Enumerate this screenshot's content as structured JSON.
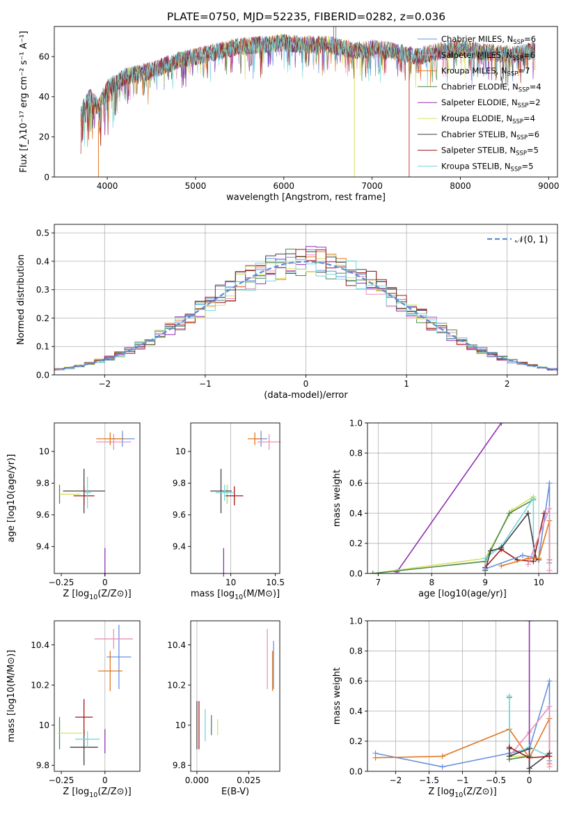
{
  "figure": {
    "title": "PLATE=0750, MJD=52235, FIBERID=0282, z=0.036"
  },
  "chart_data": [
    {
      "id": "spectrum",
      "type": "line",
      "xlabel": "wavelength [Angstrom, rest frame]",
      "ylabel": "Flux [f_λ10⁻¹⁷ erg cm⁻² s⁻¹ A⁻¹]",
      "xlim": [
        3400,
        9100
      ],
      "ylim": [
        0,
        75
      ],
      "xticks": [
        4000,
        5000,
        6000,
        7000,
        8000,
        9000
      ],
      "yticks": [
        0,
        20,
        40,
        60
      ],
      "grid": false,
      "legend_position": "top-right",
      "envelope_x": [
        3700,
        3800,
        3900,
        4000,
        4200,
        4500,
        4800,
        5000,
        5200,
        5500,
        5800,
        6000,
        6200,
        6500,
        6800,
        7000,
        7200,
        7500,
        7800,
        8000,
        8300,
        8600,
        8850
      ],
      "envelope_y": [
        32,
        40,
        35,
        44,
        50,
        53,
        58,
        60,
        62,
        65,
        66,
        67,
        66,
        66,
        63,
        64,
        63,
        60,
        63,
        64,
        62,
        61,
        63
      ],
      "series": [
        {
          "name": "Chabrier MILES, N_SSP=6",
          "label_main": "Chabrier MILES, N",
          "label_sub": "SSP",
          "label_tail": "=6",
          "color": "#6890e0"
        },
        {
          "name": "Salpeter MILES, N_SSP=6",
          "label_main": "Salpeter MILES, N",
          "label_sub": "SSP",
          "label_tail": "=6",
          "color": "#e890b8"
        },
        {
          "name": "Kroupa MILES, N_SSP=7",
          "label_main": "Kroupa MILES, N",
          "label_sub": "SSP",
          "label_tail": "=7",
          "color": "#e07820"
        },
        {
          "name": "Chabrier ELODIE, N_SSP=4",
          "label_main": "Chabrier ELODIE, N",
          "label_sub": "SSP",
          "label_tail": "=4",
          "color": "#4a8a4a"
        },
        {
          "name": "Salpeter ELODIE, N_SSP=2",
          "label_main": "Salpeter ELODIE, N",
          "label_sub": "SSP",
          "label_tail": "=2",
          "color": "#9030b0"
        },
        {
          "name": "Kroupa ELODIE, N_SSP=4",
          "label_main": "Kroupa ELODIE, N",
          "label_sub": "SSP",
          "label_tail": "=4",
          "color": "#d8e060"
        },
        {
          "name": "Chabrier STELIB, N_SSP=6",
          "label_main": "Chabrier STELIB, N",
          "label_sub": "SSP",
          "label_tail": "=6",
          "color": "#404040"
        },
        {
          "name": "Salpeter STELIB, N_SSP=5",
          "label_main": "Salpeter STELIB, N",
          "label_sub": "SSP",
          "label_tail": "=5",
          "color": "#a01818"
        },
        {
          "name": "Kroupa STELIB, N_SSP=5",
          "label_main": "Kroupa STELIB, N",
          "label_sub": "SSP",
          "label_tail": "=5",
          "color": "#70d8e0"
        }
      ]
    },
    {
      "id": "residuals",
      "type": "histogram",
      "xlabel": "(data-model)/error",
      "ylabel": "Normed distribution",
      "xlim": [
        -2.5,
        2.5
      ],
      "ylim": [
        0,
        0.53
      ],
      "xticks": [
        -2,
        -1,
        0,
        1,
        2
      ],
      "yticks": [
        0.0,
        0.1,
        0.2,
        0.3,
        0.4,
        0.5
      ],
      "grid": true,
      "legend_position": "top-right",
      "legend_label": "N(0,1)",
      "bins": 50
    },
    {
      "id": "age_vs_Z",
      "type": "errorbar",
      "xlabel_main": "Z [log",
      "xlabel_sub": "10",
      "xlabel_tail": "(Z/Z⊙)]",
      "ylabel": "age  [log10(age/yr)]",
      "xlim": [
        -0.29,
        0.2
      ],
      "ylim": [
        9.23,
        10.18
      ],
      "xticks": [
        -0.25,
        0.0
      ],
      "yticks": [
        9.4,
        9.6,
        9.8,
        10.0
      ],
      "points": [
        {
          "x": 0.1,
          "y": 10.08,
          "xerr": 0.07,
          "yerr": 0.05,
          "color": "#6890e0"
        },
        {
          "x": 0.05,
          "y": 10.06,
          "xerr": 0.1,
          "yerr": 0.05,
          "color": "#e890b8"
        },
        {
          "x": 0.03,
          "y": 10.08,
          "xerr": 0.08,
          "yerr": 0.04,
          "color": "#e07820"
        },
        {
          "x": -0.26,
          "y": 9.73,
          "xerr": 0.0,
          "yerr": 0.06,
          "color": "#4a8a4a"
        },
        {
          "x": 0.0,
          "y": 9.3,
          "xerr": 0.0,
          "yerr": 0.09,
          "color": "#9030b0"
        },
        {
          "x": -0.2,
          "y": 9.73,
          "xerr": 0.06,
          "yerr": 0.0,
          "color": "#d8e060"
        },
        {
          "x": -0.12,
          "y": 9.75,
          "xerr": 0.12,
          "yerr": 0.14,
          "color": "#404040"
        },
        {
          "x": -0.12,
          "y": 9.72,
          "xerr": 0.06,
          "yerr": 0.06,
          "color": "#a01818"
        },
        {
          "x": -0.1,
          "y": 9.74,
          "xerr": 0.02,
          "yerr": 0.1,
          "color": "#70d8e0"
        }
      ]
    },
    {
      "id": "age_vs_mass",
      "type": "errorbar",
      "xlabel_main": "mass [log",
      "xlabel_sub": "10",
      "xlabel_tail": "(M/M⊙)]",
      "xlim": [
        9.55,
        10.55
      ],
      "ylim": [
        9.23,
        10.18
      ],
      "xticks": [
        10.0,
        10.5
      ],
      "yticks": [
        9.4,
        9.6,
        9.8,
        10.0
      ],
      "points": [
        {
          "x": 10.34,
          "y": 10.08,
          "xerr": 0.07,
          "yerr": 0.05,
          "color": "#6890e0"
        },
        {
          "x": 10.43,
          "y": 10.06,
          "xerr": 0.13,
          "yerr": 0.05,
          "color": "#e890b8"
        },
        {
          "x": 10.27,
          "y": 10.08,
          "xerr": 0.08,
          "yerr": 0.04,
          "color": "#e07820"
        },
        {
          "x": 9.96,
          "y": 9.73,
          "xerr": 0.0,
          "yerr": 0.06,
          "color": "#4a8a4a"
        },
        {
          "x": 9.92,
          "y": 9.3,
          "xerr": 0.0,
          "yerr": 0.09,
          "color": "#9030b0"
        },
        {
          "x": 9.96,
          "y": 9.73,
          "xerr": 0.0,
          "yerr": 0.06,
          "color": "#d8e060"
        },
        {
          "x": 9.89,
          "y": 9.75,
          "xerr": 0.12,
          "yerr": 0.14,
          "color": "#404040"
        },
        {
          "x": 10.04,
          "y": 9.72,
          "xerr": 0.1,
          "yerr": 0.06,
          "color": "#a01818"
        },
        {
          "x": 9.93,
          "y": 9.74,
          "xerr": 0.1,
          "yerr": 0.05,
          "color": "#70d8e0"
        }
      ]
    },
    {
      "id": "mass_weight_vs_age",
      "type": "line",
      "xlabel": "age  [log10(age/yr)]",
      "ylabel": "mass weight",
      "xlim": [
        6.8,
        10.35
      ],
      "ylim": [
        0,
        1
      ],
      "xticks": [
        7,
        8,
        9,
        10
      ],
      "yticks": [
        0.0,
        0.2,
        0.4,
        0.6,
        0.8,
        1.0
      ],
      "grid": true,
      "series": [
        {
          "color": "#9030b0",
          "x": [
            7.35,
            9.3
          ],
          "y": [
            0.01,
            1.0
          ]
        },
        {
          "color": "#d8e060",
          "x": [
            6.9,
            9.0,
            9.5,
            9.9
          ],
          "y": [
            0.0,
            0.1,
            0.42,
            0.51
          ]
        },
        {
          "color": "#4a8a4a",
          "x": [
            6.9,
            9.0,
            9.45,
            9.9
          ],
          "y": [
            0.0,
            0.08,
            0.4,
            0.49
          ]
        },
        {
          "color": "#70d8e0",
          "x": [
            9.0,
            9.3,
            9.9,
            9.9
          ],
          "y": [
            0.1,
            0.18,
            0.5,
            0.1
          ]
        },
        {
          "color": "#404040",
          "x": [
            9.0,
            9.1,
            9.3,
            9.8,
            9.95,
            10.0
          ],
          "y": [
            0.02,
            0.15,
            0.17,
            0.4,
            0.1,
            0.09
          ]
        },
        {
          "color": "#a01818",
          "x": [
            9.0,
            9.3,
            9.6,
            9.9,
            10.1
          ],
          "y": [
            0.04,
            0.16,
            0.09,
            0.08,
            0.4
          ]
        },
        {
          "color": "#6890e0",
          "x": [
            9.0,
            9.7,
            10.0,
            10.2,
            10.2
          ],
          "y": [
            0.03,
            0.12,
            0.1,
            0.6,
            0.07
          ]
        },
        {
          "color": "#e07820",
          "x": [
            9.3,
            9.8,
            10.0,
            10.2,
            10.2
          ],
          "y": [
            0.05,
            0.1,
            0.1,
            0.35,
            0.09
          ]
        },
        {
          "color": "#e890b8",
          "x": [
            9.8,
            10.2,
            10.2
          ],
          "y": [
            0.06,
            0.43,
            0.02
          ]
        }
      ]
    },
    {
      "id": "mass_vs_Z",
      "type": "errorbar",
      "xlabel_main": "Z [log",
      "xlabel_sub": "10",
      "xlabel_tail": "(Z/Z⊙)]",
      "ylabel": "mass [log10(M/M⊙)]",
      "xlim": [
        -0.29,
        0.2
      ],
      "ylim": [
        9.77,
        10.52
      ],
      "xticks": [
        -0.25,
        0.0
      ],
      "yticks": [
        9.8,
        10.0,
        10.2,
        10.4
      ],
      "points": [
        {
          "x": 0.08,
          "y": 10.34,
          "xerr": 0.07,
          "yerr": 0.16,
          "color": "#6890e0"
        },
        {
          "x": 0.05,
          "y": 10.43,
          "xerr": 0.11,
          "yerr": 0.05,
          "color": "#e890b8"
        },
        {
          "x": 0.03,
          "y": 10.27,
          "xerr": 0.07,
          "yerr": 0.1,
          "color": "#e07820"
        },
        {
          "x": -0.26,
          "y": 9.96,
          "xerr": 0.0,
          "yerr": 0.08,
          "color": "#4a8a4a"
        },
        {
          "x": 0.0,
          "y": 9.92,
          "xerr": 0.0,
          "yerr": 0.06,
          "color": "#9030b0"
        },
        {
          "x": -0.2,
          "y": 9.96,
          "xerr": 0.07,
          "yerr": 0.0,
          "color": "#d8e060"
        },
        {
          "x": -0.12,
          "y": 9.89,
          "xerr": 0.08,
          "yerr": 0.09,
          "color": "#404040"
        },
        {
          "x": -0.12,
          "y": 10.04,
          "xerr": 0.05,
          "yerr": 0.09,
          "color": "#a01818"
        },
        {
          "x": -0.1,
          "y": 9.93,
          "xerr": 0.07,
          "yerr": 0.04,
          "color": "#70d8e0"
        }
      ]
    },
    {
      "id": "ebv",
      "type": "errorbar",
      "xlabel": "E(B-V)",
      "xlim": [
        -0.003,
        0.04
      ],
      "ylim": [
        9.77,
        10.52
      ],
      "xticks": [
        0.0,
        0.025
      ],
      "xtick_labels": [
        "0.000",
        "0.025"
      ],
      "yticks": [
        9.8,
        10.0,
        10.2,
        10.4
      ],
      "points": [
        {
          "x": 0.0,
          "y": 10.0,
          "yerr": 0.12,
          "color": "#404040"
        },
        {
          "x": 0.001,
          "y": 10.0,
          "yerr": 0.12,
          "color": "#a01818"
        },
        {
          "x": 0.004,
          "y": 10.0,
          "yerr": 0.08,
          "color": "#70d8e0"
        },
        {
          "x": 0.007,
          "y": 10.0,
          "yerr": 0.05,
          "color": "#4a8a4a"
        },
        {
          "x": 0.01,
          "y": 9.99,
          "yerr": 0.04,
          "color": "#d8e060"
        },
        {
          "x": 0.034,
          "y": 10.33,
          "yerr": 0.15,
          "color": "#e890b8"
        },
        {
          "x": 0.0365,
          "y": 10.27,
          "yerr": 0.1,
          "color": "#e07820"
        },
        {
          "x": 0.037,
          "y": 10.3,
          "yerr": 0.12,
          "color": "#6890e0"
        }
      ]
    },
    {
      "id": "mass_weight_vs_Z",
      "type": "line",
      "xlabel_main": "Z [log",
      "xlabel_sub": "10",
      "xlabel_tail": "(Z/Z⊙)]",
      "ylabel": "mass weight",
      "xlim": [
        -2.42,
        0.42
      ],
      "ylim": [
        0,
        1
      ],
      "xticks": [
        -2.0,
        -1.5,
        -1.0,
        -0.5,
        0.0
      ],
      "yticks": [
        0.0,
        0.2,
        0.4,
        0.6,
        0.8,
        1.0
      ],
      "grid": true,
      "series": [
        {
          "color": "#6890e0",
          "x": [
            -2.3,
            -1.3,
            -0.3,
            0.0,
            0.3,
            0.3
          ],
          "y": [
            0.12,
            0.03,
            0.12,
            0.15,
            0.6,
            0.07
          ]
        },
        {
          "color": "#e07820",
          "x": [
            -2.3,
            -1.3,
            -0.3,
            0.0,
            0.3,
            0.3
          ],
          "y": [
            0.09,
            0.1,
            0.28,
            0.09,
            0.35,
            0.05
          ]
        },
        {
          "color": "#e890b8",
          "x": [
            -0.3,
            0.0,
            0.3,
            0.3
          ],
          "y": [
            0.1,
            0.26,
            0.43,
            0.03
          ]
        },
        {
          "color": "#9030b0",
          "x": [
            0.0,
            0.0
          ],
          "y": [
            0.0,
            1.0
          ]
        },
        {
          "color": "#d8e060",
          "x": [
            -0.3,
            -0.3,
            0.0
          ],
          "y": [
            0.5,
            0.1,
            0.1
          ]
        },
        {
          "color": "#4a8a4a",
          "x": [
            -0.3,
            -0.3,
            0.0
          ],
          "y": [
            0.49,
            0.08,
            0.1
          ]
        },
        {
          "color": "#70d8e0",
          "x": [
            -0.3,
            -0.3,
            0.0,
            0.3
          ],
          "y": [
            0.5,
            0.1,
            0.16,
            0.1
          ]
        },
        {
          "color": "#404040",
          "x": [
            -0.3,
            -0.3,
            0.0,
            0.0,
            0.3
          ],
          "y": [
            0.15,
            0.1,
            0.15,
            0.02,
            0.12
          ]
        },
        {
          "color": "#a01818",
          "x": [
            -0.3,
            0.0,
            0.3
          ],
          "y": [
            0.16,
            0.09,
            0.1
          ]
        }
      ]
    }
  ]
}
